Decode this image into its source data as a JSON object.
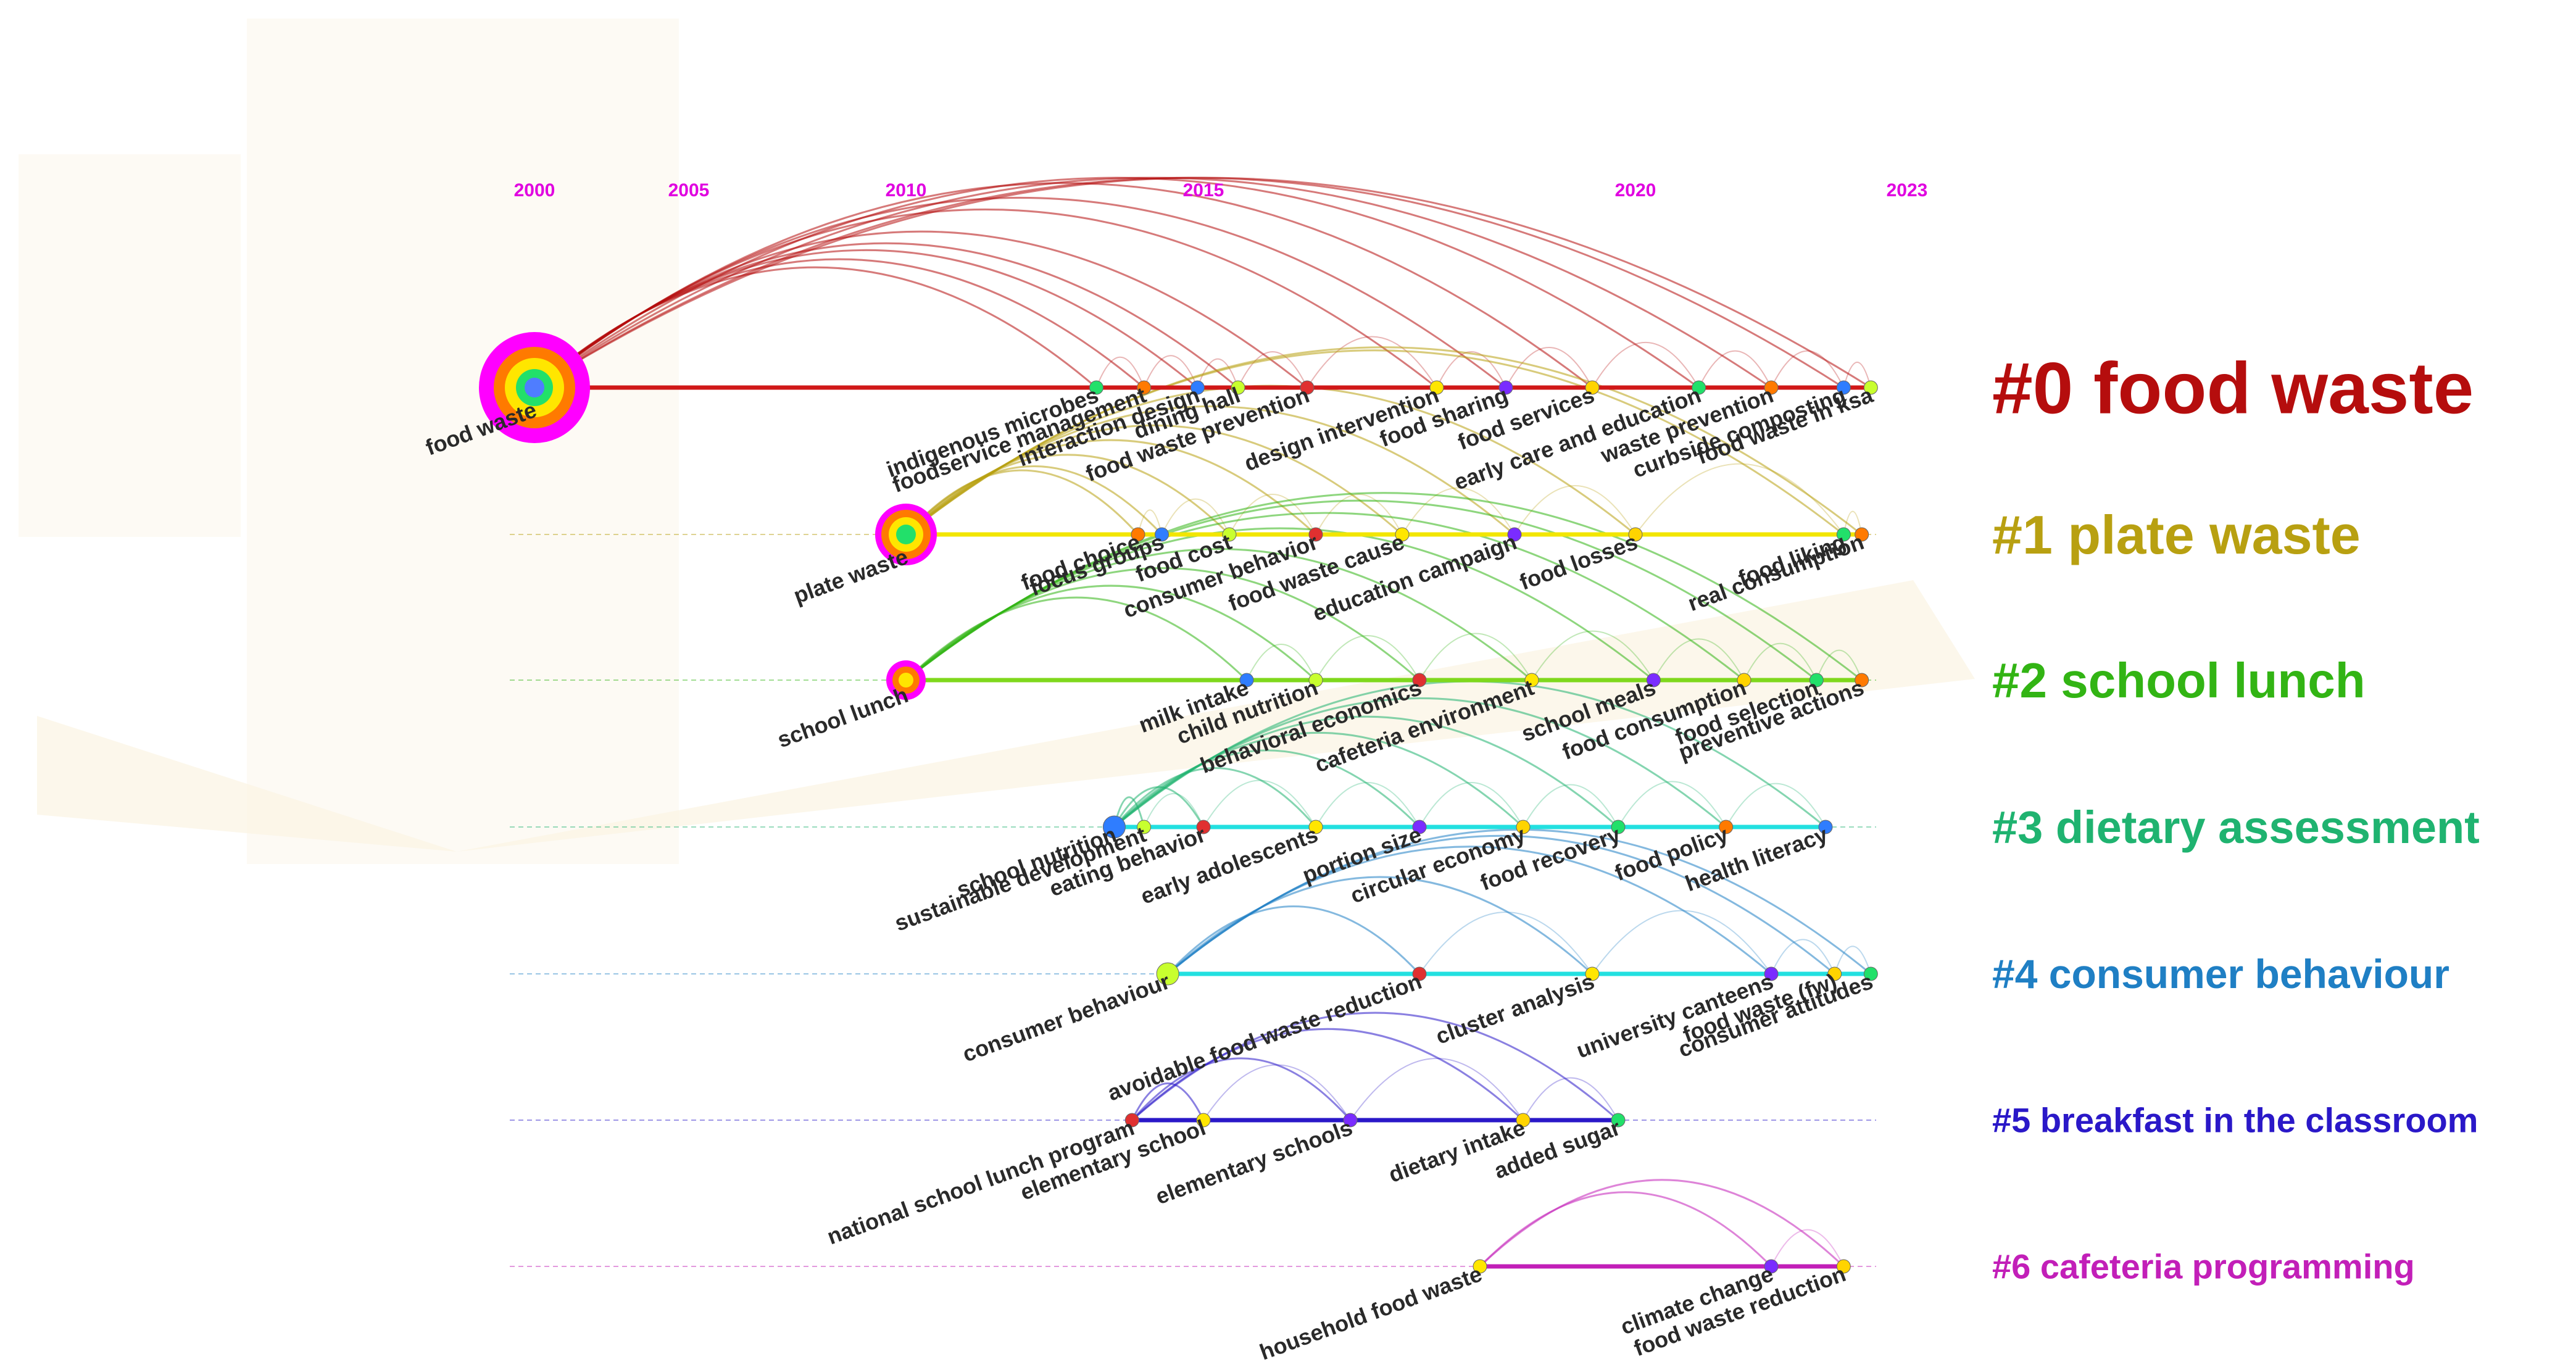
{
  "chart_data": {
    "type": "timeline",
    "title": "",
    "x_range": [
      2000,
      2023
    ],
    "years": [
      2000,
      2005,
      2010,
      2015,
      2020,
      2023
    ],
    "clusters": [
      {
        "id": "#0",
        "label": "#0 food waste",
        "color": "#b50d0d",
        "keywords": [
          {
            "text": "food waste",
            "year": 2000,
            "weight": 5
          },
          {
            "text": "indigenous microbes",
            "year": 2013.2,
            "weight": 1
          },
          {
            "text": "foodservice management",
            "year": 2014,
            "weight": 1
          },
          {
            "text": "interaction design",
            "year": 2014.9,
            "weight": 1
          },
          {
            "text": "dining hall",
            "year": 2015.4,
            "weight": 1
          },
          {
            "text": "food waste prevention",
            "year": 2016.2,
            "weight": 1
          },
          {
            "text": "design intervention",
            "year": 2017.7,
            "weight": 1
          },
          {
            "text": "food sharing",
            "year": 2018.5,
            "weight": 1
          },
          {
            "text": "food services",
            "year": 2019.5,
            "weight": 1
          },
          {
            "text": "early care and education",
            "year": 2020.7,
            "weight": 1
          },
          {
            "text": "waste prevention",
            "year": 2021.5,
            "weight": 1
          },
          {
            "text": "curbside composting",
            "year": 2022.3,
            "weight": 1
          },
          {
            "text": "food waste in ksa",
            "year": 2022.6,
            "weight": 1
          }
        ]
      },
      {
        "id": "#1",
        "label": "#1 plate waste",
        "color": "#b8a011",
        "keywords": [
          {
            "text": "plate waste",
            "year": 2010,
            "weight": 4
          },
          {
            "text": "food choice",
            "year": 2013.9,
            "weight": 1
          },
          {
            "text": "focus groups",
            "year": 2014.3,
            "weight": 1
          },
          {
            "text": "food cost",
            "year": 2015.3,
            "weight": 1
          },
          {
            "text": "consumer behavior",
            "year": 2016.3,
            "weight": 1
          },
          {
            "text": "food waste cause",
            "year": 2017.3,
            "weight": 1
          },
          {
            "text": "education campaign",
            "year": 2018.6,
            "weight": 1
          },
          {
            "text": "food losses",
            "year": 2020,
            "weight": 1
          },
          {
            "text": "food liking",
            "year": 2022.3,
            "weight": 1
          },
          {
            "text": "real consumption",
            "year": 2022.5,
            "weight": 1
          }
        ]
      },
      {
        "id": "#2",
        "label": "#2 school lunch",
        "color": "#32b414",
        "keywords": [
          {
            "text": "school lunch",
            "year": 2010,
            "weight": 3
          },
          {
            "text": "milk intake",
            "year": 2015.5,
            "weight": 1
          },
          {
            "text": "child nutrition",
            "year": 2016.3,
            "weight": 1
          },
          {
            "text": "behavioral economics",
            "year": 2017.5,
            "weight": 1
          },
          {
            "text": "cafeteria environment",
            "year": 2018.8,
            "weight": 1
          },
          {
            "text": "school meals",
            "year": 2020.2,
            "weight": 1
          },
          {
            "text": "food consumption",
            "year": 2021.2,
            "weight": 1
          },
          {
            "text": "food selection",
            "year": 2022,
            "weight": 1
          },
          {
            "text": "preventive actions",
            "year": 2022.5,
            "weight": 1
          }
        ]
      },
      {
        "id": "#3",
        "label": "#3 dietary assessment",
        "color": "#1fb370",
        "keywords": [
          {
            "text": "school nutrition",
            "year": 2013.5,
            "weight": 2
          },
          {
            "text": "sustainable development",
            "year": 2014,
            "weight": 1
          },
          {
            "text": "eating behavior",
            "year": 2015,
            "weight": 1
          },
          {
            "text": "early adolescents",
            "year": 2016.3,
            "weight": 1
          },
          {
            "text": "portion size",
            "year": 2017.5,
            "weight": 1
          },
          {
            "text": "circular economy",
            "year": 2018.7,
            "weight": 1
          },
          {
            "text": "food recovery",
            "year": 2019.8,
            "weight": 1
          },
          {
            "text": "food policy",
            "year": 2021,
            "weight": 1
          },
          {
            "text": "health literacy",
            "year": 2022.1,
            "weight": 1
          }
        ]
      },
      {
        "id": "#4",
        "label": "#4 consumer behaviour",
        "color": "#1f7fc4",
        "keywords": [
          {
            "text": "consumer behaviour",
            "year": 2014.4,
            "weight": 2
          },
          {
            "text": "avoidable food waste reduction",
            "year": 2017.5,
            "weight": 1
          },
          {
            "text": "cluster analysis",
            "year": 2019.5,
            "weight": 1
          },
          {
            "text": "university canteens",
            "year": 2021.5,
            "weight": 1
          },
          {
            "text": "food waste (fw)",
            "year": 2022.2,
            "weight": 1
          },
          {
            "text": "consumer attitudes",
            "year": 2022.6,
            "weight": 1
          }
        ]
      },
      {
        "id": "#5",
        "label": "#5 breakfast in the classroom",
        "color": "#2a18c8",
        "keywords": [
          {
            "text": "national school lunch program",
            "year": 2013.8,
            "weight": 1
          },
          {
            "text": "elementary school",
            "year": 2015,
            "weight": 1
          },
          {
            "text": "elementary schools",
            "year": 2016.7,
            "weight": 1
          },
          {
            "text": "dietary intake",
            "year": 2018.7,
            "weight": 1
          },
          {
            "text": "added sugar",
            "year": 2019.8,
            "weight": 1
          }
        ]
      },
      {
        "id": "#6",
        "label": "#6 cafeteria programming",
        "color": "#c21fb8",
        "keywords": [
          {
            "text": "household food waste",
            "year": 2018.2,
            "weight": 1
          },
          {
            "text": "climate change",
            "year": 2021.5,
            "weight": 1
          },
          {
            "text": "food waste reduction",
            "year": 2022.3,
            "weight": 1
          }
        ]
      }
    ]
  }
}
